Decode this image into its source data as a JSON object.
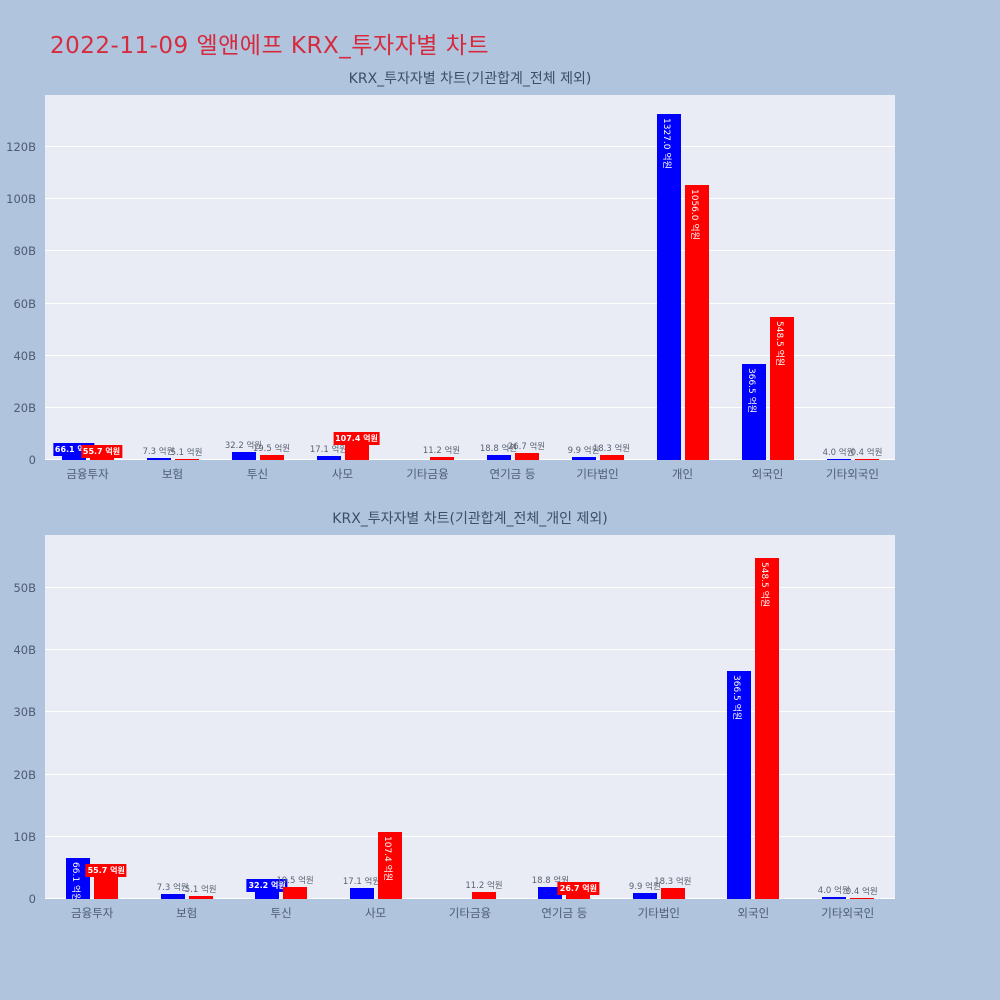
{
  "page": {
    "title": "2022-11-09 엘앤에프 KRX_투자자별 차트"
  },
  "colors": {
    "page_background": "#b0c4de",
    "page_title": "#d62b3e",
    "plot_background": "#e9ecf5",
    "gridline": "#ffffff",
    "bar_blue": "#0000ff",
    "bar_red": "#ff0000",
    "axis_text": "#4e5b73",
    "chart_title_text": "#3d4e68",
    "outside_label_text": "#5a6372"
  },
  "chart_data": [
    {
      "type": "bar",
      "title": "KRX_투자자별 차트(기관합계_전체 제외)",
      "unit": "억원",
      "ylim_b": [
        0,
        140
      ],
      "ymax_b": 140,
      "grid": true,
      "legend": "none",
      "yticks": [
        {
          "v": 0,
          "t": "0"
        },
        {
          "v": 20,
          "t": "20B"
        },
        {
          "v": 40,
          "t": "40B"
        },
        {
          "v": 60,
          "t": "60B"
        },
        {
          "v": 80,
          "t": "80B"
        },
        {
          "v": 100,
          "t": "100B"
        },
        {
          "v": 120,
          "t": "120B"
        }
      ],
      "categories": [
        "금융투자",
        "보험",
        "투신",
        "사모",
        "기타금융",
        "연기금 등",
        "기타법인",
        "개인",
        "외국인",
        "기타외국인"
      ],
      "series": [
        {
          "id": "blue",
          "color": "#0000ff",
          "points": [
            {
              "eokwon": 66.1,
              "label": "66.1 억원",
              "label_style": "badge"
            },
            {
              "eokwon": 7.3,
              "label": "7.3 억원",
              "label_style": "out"
            },
            {
              "eokwon": 32.2,
              "label": "32.2 억원",
              "label_style": "out"
            },
            {
              "eokwon": 17.1,
              "label": "17.1 억원",
              "label_style": "out"
            },
            {
              "eokwon": null,
              "label": "",
              "label_style": "none"
            },
            {
              "eokwon": 18.8,
              "label": "18.8 억원",
              "label_style": "out"
            },
            {
              "eokwon": 9.9,
              "label": "9.9 억원",
              "label_style": "out"
            },
            {
              "eokwon": 1327.0,
              "label": "1327.0 억원",
              "label_style": "vert"
            },
            {
              "eokwon": 366.5,
              "label": "366.5 억원",
              "label_style": "vert"
            },
            {
              "eokwon": 4.0,
              "label": "4.0 억원",
              "label_style": "out"
            }
          ]
        },
        {
          "id": "red",
          "color": "#ff0000",
          "points": [
            {
              "eokwon": 55.7,
              "label": "55.7 억원",
              "label_style": "badge"
            },
            {
              "eokwon": 5.1,
              "label": "5.1 억원",
              "label_style": "out"
            },
            {
              "eokwon": 19.5,
              "label": "19.5 억원",
              "label_style": "out"
            },
            {
              "eokwon": 107.4,
              "label": "107.4 억원",
              "label_style": "badge"
            },
            {
              "eokwon": 11.2,
              "label": "11.2 억원",
              "label_style": "out"
            },
            {
              "eokwon": 26.7,
              "label": "26.7 억원",
              "label_style": "out"
            },
            {
              "eokwon": 18.3,
              "label": "18.3 억원",
              "label_style": "out"
            },
            {
              "eokwon": 1056.0,
              "label": "1056.0 억원",
              "label_style": "vert"
            },
            {
              "eokwon": 548.5,
              "label": "548.5 억원",
              "label_style": "vert"
            },
            {
              "eokwon": 0.4,
              "label": "0.4 억원",
              "label_style": "out"
            }
          ]
        }
      ]
    },
    {
      "type": "bar",
      "title": "KRX_투자자별 차트(기관합계_전체_개인 제외)",
      "unit": "억원",
      "ylim_b": [
        0,
        58.5
      ],
      "ymax_b": 58.5,
      "grid": true,
      "legend": "none",
      "yticks": [
        {
          "v": 0,
          "t": "0"
        },
        {
          "v": 10,
          "t": "10B"
        },
        {
          "v": 20,
          "t": "20B"
        },
        {
          "v": 30,
          "t": "30B"
        },
        {
          "v": 40,
          "t": "40B"
        },
        {
          "v": 50,
          "t": "50B"
        }
      ],
      "categories": [
        "금융투자",
        "보험",
        "투신",
        "사모",
        "기타금융",
        "연기금 등",
        "기타법인",
        "외국인",
        "기타외국인"
      ],
      "series": [
        {
          "id": "blue",
          "color": "#0000ff",
          "points": [
            {
              "eokwon": 66.1,
              "label": "66.1 억원",
              "label_style": "vert"
            },
            {
              "eokwon": 7.3,
              "label": "7.3 억원",
              "label_style": "out"
            },
            {
              "eokwon": 32.2,
              "label": "32.2 억원",
              "label_style": "badge"
            },
            {
              "eokwon": 17.1,
              "label": "17.1 억원",
              "label_style": "out"
            },
            {
              "eokwon": null,
              "label": "",
              "label_style": "none"
            },
            {
              "eokwon": 18.8,
              "label": "18.8 억원",
              "label_style": "out"
            },
            {
              "eokwon": 9.9,
              "label": "9.9 억원",
              "label_style": "out"
            },
            {
              "eokwon": 366.5,
              "label": "366.5 억원",
              "label_style": "vert"
            },
            {
              "eokwon": 4.0,
              "label": "4.0 억원",
              "label_style": "out"
            }
          ]
        },
        {
          "id": "red",
          "color": "#ff0000",
          "points": [
            {
              "eokwon": 55.7,
              "label": "55.7 억원",
              "label_style": "badge"
            },
            {
              "eokwon": 5.1,
              "label": "5.1 억원",
              "label_style": "out"
            },
            {
              "eokwon": 19.5,
              "label": "19.5 억원",
              "label_style": "out"
            },
            {
              "eokwon": 107.4,
              "label": "107.4 억원",
              "label_style": "vert"
            },
            {
              "eokwon": 11.2,
              "label": "11.2 억원",
              "label_style": "out"
            },
            {
              "eokwon": 26.7,
              "label": "26.7 억원",
              "label_style": "badge"
            },
            {
              "eokwon": 18.3,
              "label": "18.3 억원",
              "label_style": "out"
            },
            {
              "eokwon": 548.5,
              "label": "548.5 억원",
              "label_style": "vert"
            },
            {
              "eokwon": 0.4,
              "label": "0.4 억원",
              "label_style": "out"
            }
          ]
        }
      ]
    }
  ]
}
